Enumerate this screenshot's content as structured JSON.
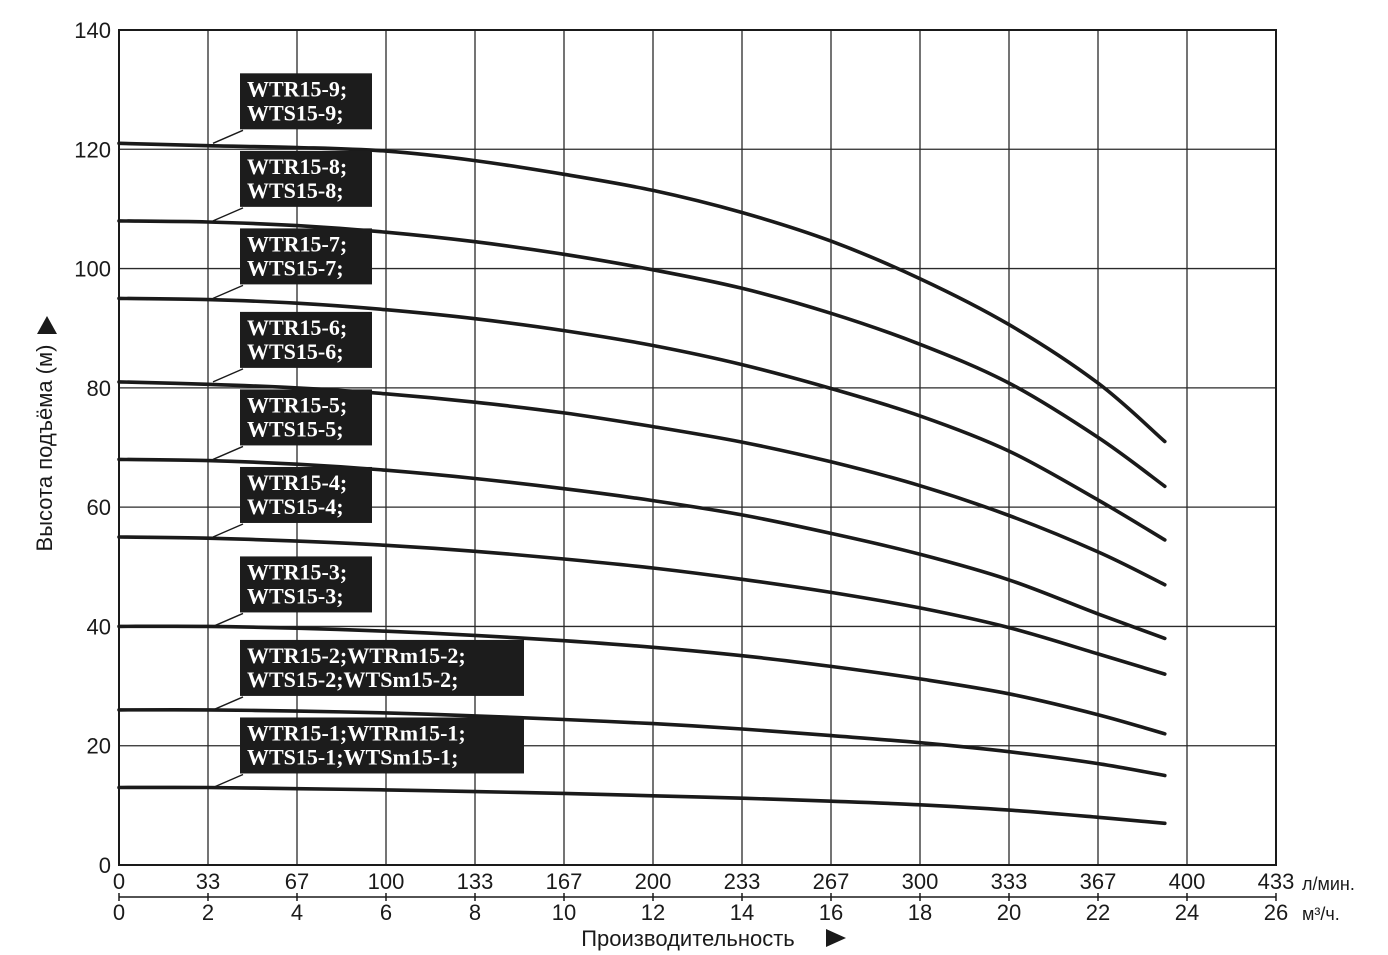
{
  "chart_data": {
    "type": "line",
    "ylabel": "Высота подъёма (м)",
    "xlabel": "Производительность",
    "ylim": [
      0,
      140
    ],
    "y_ticks": [
      0,
      20,
      40,
      60,
      80,
      100,
      120,
      140
    ],
    "x_m3h_ticks": [
      0,
      2,
      4,
      6,
      8,
      10,
      12,
      14,
      16,
      18,
      20,
      22,
      24,
      26
    ],
    "x_lmin_ticks": [
      "0",
      "33",
      "67",
      "100",
      "133",
      "167",
      "200",
      "233",
      "267",
      "300",
      "333",
      "367",
      "400",
      "433"
    ],
    "x_unit_m3h": "м³/ч.",
    "x_unit_lmin": "л/мин.",
    "xlim_m3h": [
      0,
      26
    ],
    "grid": true,
    "x": [
      0,
      2,
      4,
      6,
      8,
      10,
      12,
      14,
      16,
      18,
      20,
      22,
      23.5
    ],
    "series": [
      {
        "name": "WTR15-9; WTS15-9;",
        "line1": "WTR15-9;",
        "line2": "WTS15-9;",
        "values": [
          121,
          120.6,
          120.3,
          119.7,
          118.1,
          115.8,
          113.1,
          109.4,
          104.6,
          98.3,
          90.6,
          80.8,
          71
        ]
      },
      {
        "name": "WTR15-8; WTS15-8;",
        "line1": "WTR15-8;",
        "line2": "WTS15-8;",
        "values": [
          108,
          107.8,
          107.2,
          106.1,
          104.5,
          102.4,
          99.8,
          96.7,
          92.5,
          87.3,
          80.8,
          71.7,
          63.5
        ]
      },
      {
        "name": "WTR15-7; WTS15-7;",
        "line1": "WTR15-7;",
        "line2": "WTS15-7;",
        "values": [
          95,
          94.8,
          94.2,
          93.1,
          91.6,
          89.6,
          87.1,
          83.9,
          79.9,
          75.3,
          69.4,
          61.2,
          54.5
        ]
      },
      {
        "name": "WTR15-6; WTS15-6;",
        "line1": "WTR15-6;",
        "line2": "WTS15-6;",
        "values": [
          81,
          80.6,
          80.0,
          79.0,
          77.6,
          75.8,
          73.5,
          70.9,
          67.6,
          63.6,
          58.6,
          52.5,
          47
        ]
      },
      {
        "name": "WTR15-5; WTS15-5;",
        "line1": "WTR15-5;",
        "line2": "WTS15-5;",
        "values": [
          68,
          67.8,
          67.2,
          66.2,
          64.8,
          63.1,
          61.1,
          58.7,
          55.6,
          52.1,
          47.8,
          42.1,
          38
        ]
      },
      {
        "name": "WTR15-4; WTS15-4;",
        "line1": "WTR15-4;",
        "line2": "WTS15-4;",
        "values": [
          55,
          54.8,
          54.3,
          53.6,
          52.6,
          51.3,
          49.8,
          47.9,
          45.7,
          43.1,
          39.8,
          35.4,
          32
        ]
      },
      {
        "name": "WTR15-3; WTS15-3;",
        "line1": "WTR15-3;",
        "line2": "WTS15-3;",
        "values": [
          40,
          40.0,
          39.7,
          39.2,
          38.5,
          37.6,
          36.5,
          35.1,
          33.3,
          31.2,
          28.7,
          25.2,
          22
        ]
      },
      {
        "name": "WTR15-2;WTRm15-2; WTS15-2;WTSm15-2;",
        "line1": "WTR15-2;WTRm15-2;",
        "line2": "WTS15-2;WTSm15-2;",
        "values": [
          26,
          26.0,
          25.8,
          25.5,
          25.0,
          24.4,
          23.7,
          22.8,
          21.7,
          20.5,
          19.0,
          17.0,
          15
        ]
      },
      {
        "name": "WTR15-1;WTRm15-1; WTS15-1;WTSm15-1;",
        "line1": "WTR15-1;WTRm15-1;",
        "line2": "WTS15-1;WTSm15-1;",
        "values": [
          13,
          13.0,
          12.8,
          12.6,
          12.3,
          12.0,
          11.6,
          11.2,
          10.7,
          10.1,
          9.2,
          8.0,
          7
        ]
      }
    ]
  }
}
